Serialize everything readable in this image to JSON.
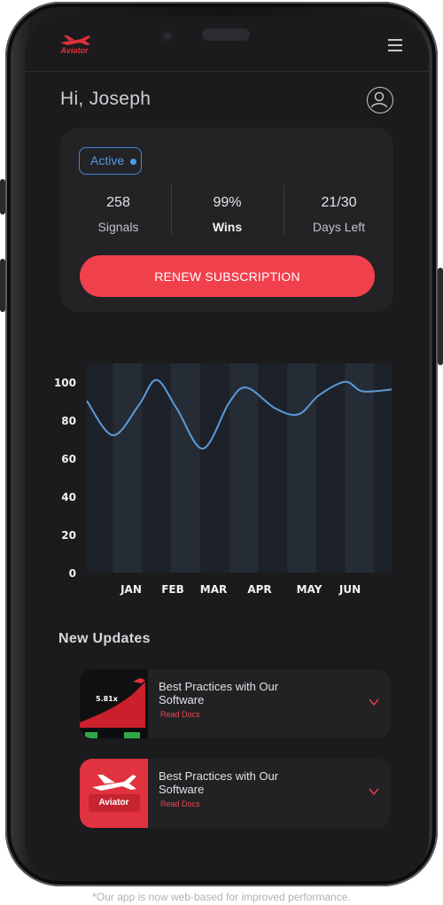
{
  "header": {
    "logo_text": "Aviator",
    "menu_icon": "hamburger-menu-icon"
  },
  "greeting": "Hi, Joseph",
  "subscription": {
    "status": "Active",
    "stats": [
      {
        "value": "258",
        "label": "Signals"
      },
      {
        "value": "99%",
        "label": "Wins"
      },
      {
        "value": "21/30",
        "label": "Days Left"
      }
    ],
    "renew_label": "RENEW SUBSCRIPTION"
  },
  "chart_data": {
    "type": "area",
    "categories": [
      "JAN",
      "FEB",
      "MAR",
      "APR",
      "MAY",
      "JUN"
    ],
    "x": [
      0.55,
      1.0,
      1.45,
      1.75,
      2.1,
      2.55,
      3.0,
      3.3,
      3.8,
      4.2,
      4.55,
      5.0,
      5.3,
      5.8
    ],
    "values": [
      90,
      72,
      88,
      101,
      86,
      65,
      89,
      97,
      86,
      83,
      93,
      100,
      95,
      96
    ],
    "ylim": [
      0,
      105
    ],
    "yticks": [
      "100",
      "80",
      "60",
      "40",
      "20",
      "0"
    ],
    "xlabel": "",
    "ylabel": "",
    "grid": false,
    "colors": {
      "line": "#5c9ad8",
      "band_dark": "#1d222a",
      "band_light": "#252c36"
    }
  },
  "updates": {
    "title": "New Updates",
    "items": [
      {
        "title": "Best Practices with Our Software",
        "link": "Read Docs",
        "thumb_text": "5.81x"
      },
      {
        "title": "Best Practices with Our Software",
        "link": "Read Docs",
        "thumb_text": "Aviator"
      }
    ]
  },
  "footnote": "*Our app is now web-based for improved performance."
}
